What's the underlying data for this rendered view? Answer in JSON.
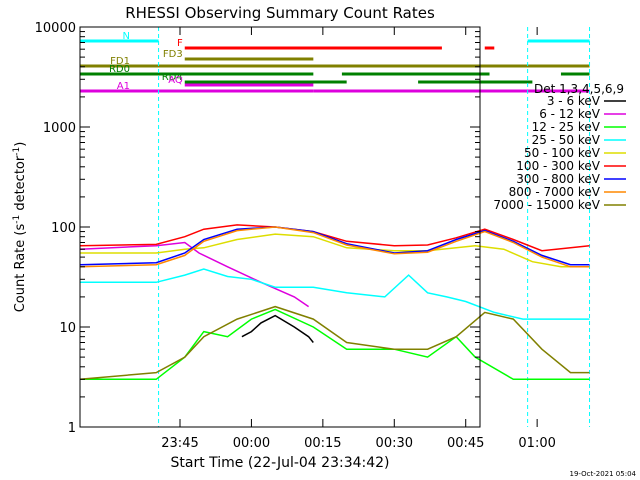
{
  "chart_data": {
    "type": "line",
    "title": "RHESSI Observing Summary Count Rates",
    "xlabel": "Start Time (22-Jul-04 23:34:42)",
    "ylabel_main": "Count Rate (s",
    "ylabel_exp1": "-1",
    "ylabel_mid": " detector",
    "ylabel_exp2": "-1",
    "ylabel_end": ")",
    "yscale": "log",
    "ylim": [
      1,
      10000
    ],
    "xlim_min": [
      -11,
      73
    ],
    "x_ticks": [
      {
        "min": 10,
        "label": "23:45"
      },
      {
        "min": 25,
        "label": "00:00"
      },
      {
        "min": 40,
        "label": "00:15"
      },
      {
        "min": 55,
        "label": "00:30"
      },
      {
        "min": 70,
        "label": "00:45"
      },
      {
        "min": 85,
        "label": "01:00"
      }
    ],
    "y_ticks": [
      {
        "v": 1,
        "label": "1"
      },
      {
        "v": 10,
        "label": "10"
      },
      {
        "v": 100,
        "label": "100"
      },
      {
        "v": 1000,
        "label": "1000"
      },
      {
        "v": 10000,
        "label": "10000"
      }
    ],
    "legend_title": "Det 1,3,4,5,6,9",
    "legend_position": "right",
    "series": [
      {
        "name": "3 - 6 keV",
        "color": "#000000",
        "points": [
          [
            23,
            8
          ],
          [
            25,
            9
          ],
          [
            27,
            11
          ],
          [
            30,
            13
          ],
          [
            34,
            10
          ],
          [
            37,
            8
          ],
          [
            38,
            7
          ]
        ]
      },
      {
        "name": "6 - 12 keV",
        "color": "#dd00dd",
        "points": [
          [
            -11,
            60
          ],
          [
            5,
            65
          ],
          [
            11,
            70
          ],
          [
            14,
            55
          ],
          [
            20,
            40
          ],
          [
            27,
            28
          ],
          [
            34,
            20
          ],
          [
            37,
            16
          ]
        ]
      },
      {
        "name": "12 - 25 keV",
        "color": "#00ff00",
        "points": [
          [
            -11,
            3
          ],
          [
            5,
            3
          ],
          [
            11,
            5
          ],
          [
            15,
            9
          ],
          [
            20,
            8
          ],
          [
            25,
            12
          ],
          [
            30,
            15
          ],
          [
            38,
            10
          ],
          [
            45,
            6
          ],
          [
            55,
            6
          ],
          [
            62,
            5
          ],
          [
            68,
            8
          ],
          [
            72,
            5
          ],
          [
            80,
            3
          ],
          [
            90,
            3
          ],
          [
            96,
            3
          ]
        ]
      },
      {
        "name": "25 - 50 keV",
        "color": "#00ffff",
        "points": [
          [
            -11,
            28
          ],
          [
            5,
            28
          ],
          [
            11,
            33
          ],
          [
            15,
            38
          ],
          [
            20,
            32
          ],
          [
            25,
            30
          ],
          [
            30,
            25
          ],
          [
            38,
            25
          ],
          [
            45,
            22
          ],
          [
            53,
            20
          ],
          [
            58,
            33
          ],
          [
            62,
            22
          ],
          [
            66,
            20
          ],
          [
            70,
            18
          ],
          [
            76,
            14
          ],
          [
            82,
            12
          ],
          [
            88,
            12
          ],
          [
            96,
            12
          ]
        ]
      },
      {
        "name": "50 - 100 keV",
        "color": "#dddd00",
        "points": [
          [
            -11,
            55
          ],
          [
            5,
            55
          ],
          [
            11,
            60
          ],
          [
            15,
            62
          ],
          [
            22,
            75
          ],
          [
            30,
            85
          ],
          [
            38,
            80
          ],
          [
            45,
            62
          ],
          [
            55,
            58
          ],
          [
            62,
            58
          ],
          [
            68,
            62
          ],
          [
            72,
            65
          ],
          [
            78,
            60
          ],
          [
            84,
            45
          ],
          [
            90,
            40
          ],
          [
            96,
            40
          ]
        ]
      },
      {
        "name": "100 - 300 keV",
        "color": "#ff0000",
        "points": [
          [
            -11,
            65
          ],
          [
            5,
            67
          ],
          [
            11,
            80
          ],
          [
            15,
            95
          ],
          [
            22,
            105
          ],
          [
            30,
            100
          ],
          [
            38,
            90
          ],
          [
            45,
            72
          ],
          [
            55,
            65
          ],
          [
            62,
            66
          ],
          [
            68,
            78
          ],
          [
            74,
            95
          ],
          [
            80,
            75
          ],
          [
            86,
            58
          ],
          [
            92,
            62
          ],
          [
            96,
            65
          ]
        ]
      },
      {
        "name": "300 - 800 keV",
        "color": "#0000ff",
        "points": [
          [
            -11,
            42
          ],
          [
            5,
            44
          ],
          [
            11,
            55
          ],
          [
            15,
            75
          ],
          [
            22,
            95
          ],
          [
            30,
            100
          ],
          [
            38,
            90
          ],
          [
            45,
            68
          ],
          [
            55,
            55
          ],
          [
            62,
            58
          ],
          [
            68,
            75
          ],
          [
            74,
            92
          ],
          [
            80,
            72
          ],
          [
            86,
            52
          ],
          [
            92,
            42
          ],
          [
            96,
            42
          ]
        ]
      },
      {
        "name": "800 - 7000 keV",
        "color": "#ff8800",
        "points": [
          [
            -11,
            40
          ],
          [
            5,
            42
          ],
          [
            11,
            52
          ],
          [
            15,
            72
          ],
          [
            22,
            92
          ],
          [
            30,
            100
          ],
          [
            38,
            88
          ],
          [
            45,
            66
          ],
          [
            55,
            54
          ],
          [
            62,
            56
          ],
          [
            68,
            72
          ],
          [
            74,
            90
          ],
          [
            80,
            70
          ],
          [
            86,
            50
          ],
          [
            92,
            40
          ],
          [
            96,
            40
          ]
        ]
      },
      {
        "name": "7000 - 15000 keV",
        "color": "#808000",
        "points": [
          [
            -11,
            3
          ],
          [
            5,
            3.5
          ],
          [
            11,
            5
          ],
          [
            15,
            8
          ],
          [
            22,
            12
          ],
          [
            30,
            16
          ],
          [
            38,
            12
          ],
          [
            45,
            7
          ],
          [
            55,
            6
          ],
          [
            62,
            6
          ],
          [
            68,
            8
          ],
          [
            74,
            14
          ],
          [
            80,
            12
          ],
          [
            86,
            6
          ],
          [
            92,
            3.5
          ],
          [
            96,
            3.5
          ]
        ]
      }
    ],
    "flag_bars": [
      {
        "name": "N",
        "color": "#00ffff",
        "segments": [
          [
            -11,
            5.5
          ],
          [
            83,
            96
          ]
        ]
      },
      {
        "name": "F",
        "color": "#ff0000",
        "segments": [
          [
            11,
            65
          ],
          [
            74,
            76
          ]
        ]
      },
      {
        "name": "FD1",
        "color": "#808000",
        "segments": [
          [
            -11,
            96
          ]
        ]
      },
      {
        "name": "FD3",
        "color": "#808000",
        "segments": [
          [
            11,
            38
          ]
        ]
      },
      {
        "name": "RD0",
        "color": "#008000",
        "segments": [
          [
            -11,
            38
          ],
          [
            44,
            75
          ],
          [
            90,
            96
          ]
        ]
      },
      {
        "name": "RD4",
        "color": "#008000",
        "segments": [
          [
            11,
            45
          ],
          [
            60,
            84
          ]
        ]
      },
      {
        "name": "AQ",
        "color": "#dd00dd",
        "segments": [
          [
            11,
            38
          ]
        ]
      },
      {
        "name": "A1",
        "color": "#dd00dd",
        "segments": [
          [
            -11,
            38
          ],
          [
            38,
            96
          ]
        ]
      }
    ]
  },
  "footer": {
    "date": "19-Oct-2021 05:04"
  }
}
